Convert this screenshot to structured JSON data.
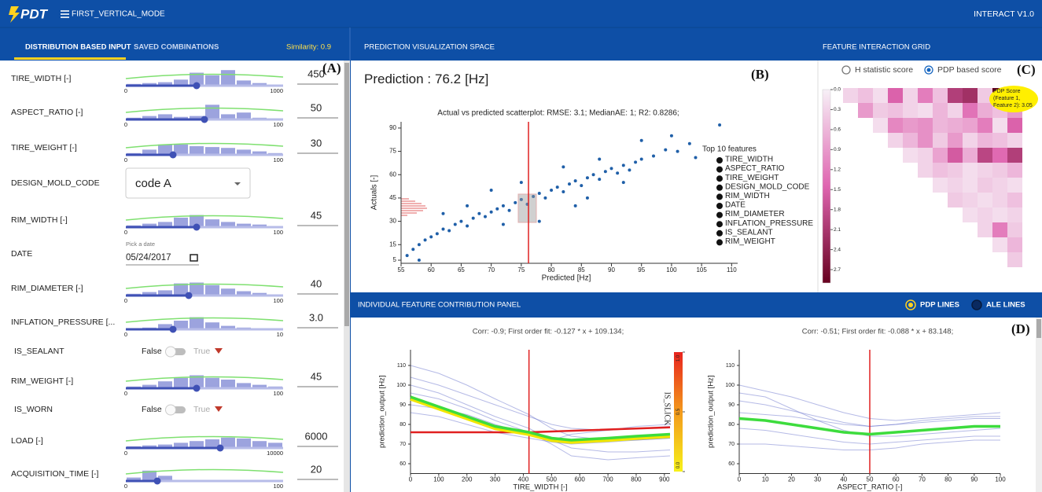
{
  "header": {
    "logo": "PDT",
    "mode": "FIRST_VERTICAL_MODE",
    "version": "INTERACT V1.0"
  },
  "tabs": {
    "items": [
      "DISTRIBUTION BASED INPUT",
      "SAVED COMBINATIONS"
    ],
    "similarity": "Similarity: 0.9"
  },
  "panel_tags": [
    "(A)",
    "(B)",
    "(C)",
    "(D)"
  ],
  "sections": {
    "prediction": "PREDICTION VISUALIZATION SPACE",
    "interaction": "FEATURE INTERACTION GRID",
    "contribution": "INDIVIDUAL FEATURE CONTRIBUTION PANEL"
  },
  "inputs": [
    {
      "label": "TIRE_WIDTH [-]",
      "control": "slider",
      "min": 0,
      "max": 1000,
      "value": 450,
      "hist": [
        0.1,
        0.15,
        0.2,
        0.35,
        0.75,
        0.6,
        0.9,
        0.3,
        0.15,
        0.05
      ]
    },
    {
      "label": "ASPECT_RATIO [-]",
      "control": "slider",
      "min": 0,
      "max": 100,
      "value": 50,
      "hist": [
        0.1,
        0.2,
        0.3,
        0.15,
        0.2,
        0.85,
        0.3,
        0.4,
        0.1,
        0.05
      ]
    },
    {
      "label": "TIRE_WEIGHT [-]",
      "control": "slider",
      "min": 0,
      "max": 100,
      "value": 30,
      "hist": [
        0.1,
        0.3,
        0.6,
        0.6,
        0.5,
        0.45,
        0.4,
        0.3,
        0.2,
        0.1
      ]
    },
    {
      "label": "DESIGN_MOLD_CODE",
      "control": "select",
      "option": "code A"
    },
    {
      "label": "RIM_WIDTH [-]",
      "control": "slider",
      "min": 0,
      "max": 100,
      "value": 45,
      "hist": [
        0.1,
        0.2,
        0.3,
        0.55,
        0.7,
        0.45,
        0.3,
        0.2,
        0.15,
        0.05
      ]
    },
    {
      "label": "DATE",
      "control": "date",
      "hint": "Pick a date",
      "date": "05/24/2017"
    },
    {
      "label": "RIM_DIAMETER [-]",
      "control": "slider",
      "min": 0,
      "max": 100,
      "value": 40,
      "hist": [
        0.1,
        0.2,
        0.3,
        0.7,
        0.75,
        0.6,
        0.4,
        0.25,
        0.15,
        0.05
      ]
    },
    {
      "label": "INFLATION_PRESSURE [...",
      "control": "slider",
      "min": 0,
      "max": 10,
      "value": 3,
      "value_label": "3.0",
      "hist": [
        0.05,
        0.1,
        0.3,
        0.5,
        0.7,
        0.4,
        0.2,
        0.1,
        0.05,
        0.02
      ]
    },
    {
      "label": "IS_SEALANT",
      "control": "toggle",
      "off": "False",
      "on": "True"
    },
    {
      "label": "RIM_WEIGHT [-]",
      "control": "slider",
      "min": 0,
      "max": 100,
      "value": 45,
      "hist": [
        0.1,
        0.2,
        0.4,
        0.6,
        0.75,
        0.6,
        0.5,
        0.3,
        0.2,
        0.1
      ]
    },
    {
      "label": "IS_WORN",
      "control": "toggle",
      "off": "False",
      "on": "True"
    },
    {
      "label": "LOAD [-]",
      "control": "slider",
      "min": 0,
      "max": 10000,
      "value": 6000,
      "hist": [
        0.1,
        0.15,
        0.2,
        0.3,
        0.4,
        0.5,
        0.6,
        0.55,
        0.4,
        0.3
      ]
    },
    {
      "label": "ACQUISITION_TIME [-]",
      "control": "slider",
      "min": 0,
      "max": 100,
      "value": 20,
      "hist": [
        0.2,
        0.6,
        0.3,
        0.05,
        0.05,
        0.03,
        0.02,
        0.02,
        0.02,
        0.02
      ]
    }
  ],
  "prediction": {
    "label": "Prediction :",
    "value": 76.2,
    "unit": "[Hz]"
  },
  "scatter": {
    "type": "scatter",
    "title": "Actual vs predicted scatterplot: RMSE: 3.1; MedianAE: 1; R2: 0.8286;",
    "xlabel": "Predicted [Hz]",
    "ylabel": "Actuals [-]",
    "color": "#1f5fa8",
    "xlim": [
      55,
      111
    ],
    "xticks": [
      55,
      60,
      65,
      70,
      75,
      80,
      85,
      90,
      95,
      100,
      105,
      110
    ],
    "ylim": [
      3,
      94
    ],
    "yticks": [
      5,
      15,
      30,
      45,
      60,
      75,
      90
    ],
    "x": [
      56,
      57,
      58,
      59,
      60,
      61,
      62,
      63,
      64,
      65,
      66,
      67,
      68,
      69,
      70,
      71,
      72,
      73,
      74,
      75,
      76,
      77,
      78,
      79,
      80,
      81,
      82,
      83,
      84,
      85,
      86,
      87,
      88,
      89,
      90,
      91,
      92,
      93,
      94,
      95,
      97,
      99,
      101,
      103,
      104,
      108,
      62,
      70,
      78,
      84,
      88,
      75,
      66,
      92,
      58,
      100,
      95,
      82,
      72,
      86
    ],
    "y": [
      8,
      12,
      15,
      18,
      20,
      22,
      25,
      24,
      28,
      30,
      27,
      32,
      35,
      33,
      36,
      38,
      40,
      37,
      42,
      44,
      41,
      46,
      48,
      45,
      50,
      52,
      49,
      54,
      56,
      53,
      58,
      60,
      57,
      62,
      64,
      61,
      66,
      63,
      68,
      70,
      72,
      76,
      75,
      80,
      71,
      92,
      35,
      50,
      30,
      40,
      70,
      55,
      40,
      55,
      5,
      85,
      82,
      65,
      28,
      45
    ],
    "legend_title": "Top 10 features",
    "features": [
      "TIRE_WIDTH",
      "ASPECT_RATIO",
      "TIRE_WEIGHT",
      "DESIGN_MOLD_CODE",
      "RIM_WIDTH",
      "DATE",
      "RIM_DIAMETER",
      "INFLATION_PRESSURE",
      "IS_SEALANT",
      "RIM_WEIGHT"
    ]
  },
  "interaction": {
    "options": [
      "H statistic score",
      "PDP based score"
    ],
    "selected": 1,
    "clim": [
      0,
      2.9
    ],
    "colors": [
      "#f7f0f7",
      "#df65b0",
      "#67001f"
    ],
    "cbar_ticks": [
      {
        "value": 0,
        "label": "0.0"
      },
      {
        "value": 0.3,
        "label": "0.3"
      },
      {
        "value": 0.6,
        "label": "0.6"
      },
      {
        "value": 0.9,
        "label": "0.9"
      },
      {
        "value": 1.2,
        "label": "1.2"
      },
      {
        "value": 1.5,
        "label": "1.5"
      },
      {
        "value": 1.8,
        "label": "1.8"
      },
      {
        "value": 2.1,
        "label": "2.1"
      },
      {
        "value": 2.4,
        "label": "2.4"
      },
      {
        "value": 2.7,
        "label": "2.7"
      }
    ],
    "matrix": [
      [
        0.3,
        0.5,
        0.2,
        1.5,
        0.3,
        1.2,
        0.5,
        2.0,
        2.2,
        0.4,
        3.05,
        1.0
      ],
      [
        0.9,
        0.4,
        0.5,
        0.3,
        0.2,
        0.6,
        0.3,
        1.3,
        0.7,
        0.5,
        0.9
      ],
      [
        0.2,
        1.1,
        0.9,
        1.0,
        0.6,
        0.7,
        0.8,
        1.2,
        0.2,
        1.5
      ],
      [
        0.3,
        0.6,
        1.0,
        0.4,
        0.9,
        0.3,
        0.6,
        0.5,
        0.3
      ],
      [
        0.2,
        0.3,
        0.8,
        1.6,
        0.7,
        1.9,
        1.4,
        2.0
      ],
      [
        0.3,
        0.5,
        0.4,
        0.2,
        0.3,
        0.4,
        0.6
      ],
      [
        0.2,
        0.3,
        0.2,
        0.4,
        0.3,
        0.2
      ],
      [
        0.4,
        0.3,
        0.2,
        0.3,
        0.5
      ],
      [
        0.2,
        0.3,
        0.2,
        0.3
      ],
      [
        0.3,
        1.2,
        0.4
      ],
      [
        0.2,
        0.6
      ],
      [
        0.4
      ]
    ],
    "tooltip": [
      "PDP Score",
      "(Feature 1,",
      "Feature 2): 3.05"
    ]
  },
  "contribution": {
    "options": [
      "PDP LINES",
      "ALE LINES"
    ],
    "selected": 0,
    "plots": [
      {
        "type": "line",
        "title": "Corr: -0.9; First order fit: -0.127 * x + 109.134;",
        "xlabel": "TIRE_WIDTH [-]",
        "ylabel": "prediction_output [Hz]",
        "xlim": [
          0,
          920
        ],
        "xticks": [
          0,
          100,
          200,
          300,
          400,
          500,
          600,
          700,
          800,
          900
        ],
        "ylim": [
          55,
          118
        ],
        "yticks": [
          60,
          70,
          80,
          90,
          100,
          110
        ],
        "marker_x": 420,
        "pdp_color": "#3ddc3d",
        "pdp_underlay": "#f2e600",
        "x": [
          0,
          100,
          200,
          300,
          420,
          500,
          570,
          700,
          800,
          920
        ],
        "pdp": [
          94,
          89,
          84,
          79,
          76,
          73,
          72,
          73,
          74,
          75
        ],
        "ice": [
          [
            100,
            96,
            90,
            84,
            78,
            72,
            68,
            66,
            66,
            67
          ],
          [
            110,
            106,
            100,
            93,
            85,
            78,
            74,
            72,
            72,
            73
          ],
          [
            86,
            84,
            80,
            76,
            73,
            71,
            70,
            71,
            72,
            73
          ],
          [
            96,
            93,
            88,
            82,
            76,
            70,
            64,
            62,
            63,
            64
          ],
          [
            104,
            100,
            95,
            90,
            84,
            80,
            78,
            77,
            78,
            79
          ],
          [
            90,
            88,
            85,
            80,
            75,
            72,
            75,
            77,
            79,
            80
          ]
        ],
        "fit": {
          "x": [
            0,
            420,
            920
          ],
          "y": [
            76,
            76,
            78.5
          ]
        },
        "colorbar": {
          "label": "IS_SLICK",
          "ticks": [
            {
              "value": 0,
              "label": "0.0"
            },
            {
              "value": 0.5,
              "label": "0.5"
            },
            {
              "value": 1,
              "label": "1.0"
            }
          ]
        }
      },
      {
        "type": "line",
        "title": "Corr: -0.51; First order fit: -0.088 * x + 83.148;",
        "xlabel": "ASPECT_RATIO [-]",
        "ylabel": "prediction_output [Hz]",
        "xlim": [
          0,
          100
        ],
        "xticks": [
          0,
          10,
          20,
          30,
          40,
          50,
          60,
          70,
          80,
          90,
          100
        ],
        "ylim": [
          55,
          118
        ],
        "yticks": [
          60,
          70,
          80,
          90,
          100,
          110
        ],
        "marker_x": 50,
        "pdp_color": "#3ddc3d",
        "x": [
          0,
          10,
          20,
          30,
          40,
          50,
          60,
          70,
          80,
          90,
          100
        ],
        "pdp": [
          83,
          82,
          80,
          78,
          76,
          75,
          76,
          77,
          78,
          79,
          79
        ],
        "ice": [
          [
            92,
            90,
            87,
            84,
            81,
            79,
            80,
            81,
            82,
            83,
            83
          ],
          [
            78,
            77,
            75,
            73,
            71,
            70,
            71,
            72,
            73,
            74,
            74
          ],
          [
            100,
            97,
            94,
            90,
            86,
            83,
            82,
            83,
            84,
            85,
            86
          ],
          [
            70,
            70,
            69,
            68,
            67,
            67,
            68,
            70,
            71,
            72,
            72
          ],
          [
            86,
            85,
            84,
            82,
            80,
            79,
            80,
            82,
            83,
            84,
            84
          ],
          [
            96,
            94,
            88,
            82,
            77,
            74,
            74,
            75,
            76,
            77,
            78
          ]
        ]
      }
    ]
  }
}
